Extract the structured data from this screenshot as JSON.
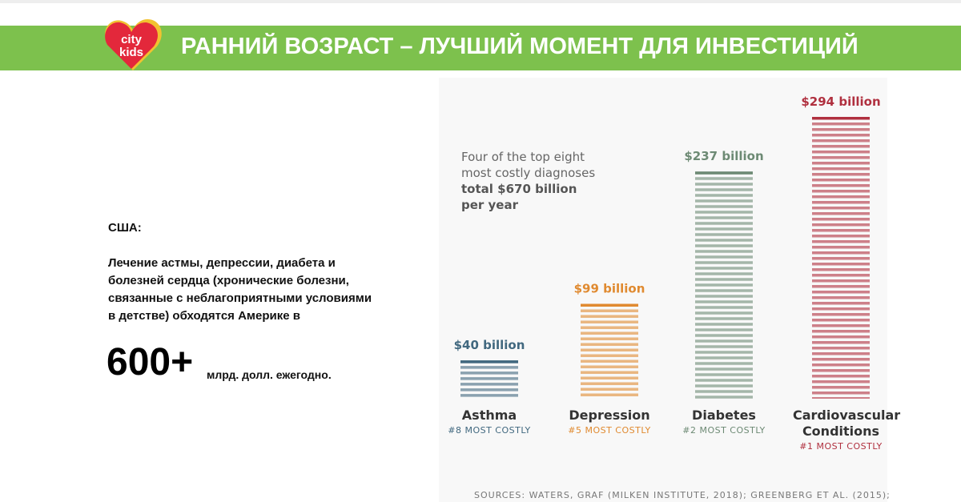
{
  "slide": {
    "title": "РАННИЙ ВОЗРАСТ – ЛУЧШИЙ МОМЕНТ ДЛЯ ИНВЕСТИЦИЙ",
    "logo": [
      "city",
      "kids"
    ],
    "country": "США:",
    "text": "Лечение астмы, депрессии, диабета и болезней сердца (хронические болезни, связанные с неблагоприятными условиями в детстве) обходятся Америке в",
    "big_number": "600+",
    "big_number_unit": "млрд. долл. ежегодно."
  },
  "chart_data": {
    "type": "bar",
    "categories": [
      "Asthma",
      "Depression",
      "Diabetes",
      "Cardiovascular Conditions"
    ],
    "values": [
      40,
      99,
      237,
      294
    ],
    "value_labels": [
      "$40 billion",
      "$99 billion",
      "$237 billion",
      "$294 billion"
    ],
    "ranks": [
      "#8 MOST COSTLY",
      "#5 MOST COSTLY",
      "#2 MOST COSTLY",
      "#1 MOST COSTLY"
    ],
    "colors": [
      "#41687f",
      "#e08a30",
      "#6d8a74",
      "#b0303f"
    ],
    "annotation": [
      "Four of the top eight",
      "most costly diagnoses",
      "total $670 billion",
      "per year"
    ],
    "source": "SOURCES: WATERS, GRAF (MILKEN INSTITUTE, 2018); GREENBERG ET AL. (2015);"
  }
}
